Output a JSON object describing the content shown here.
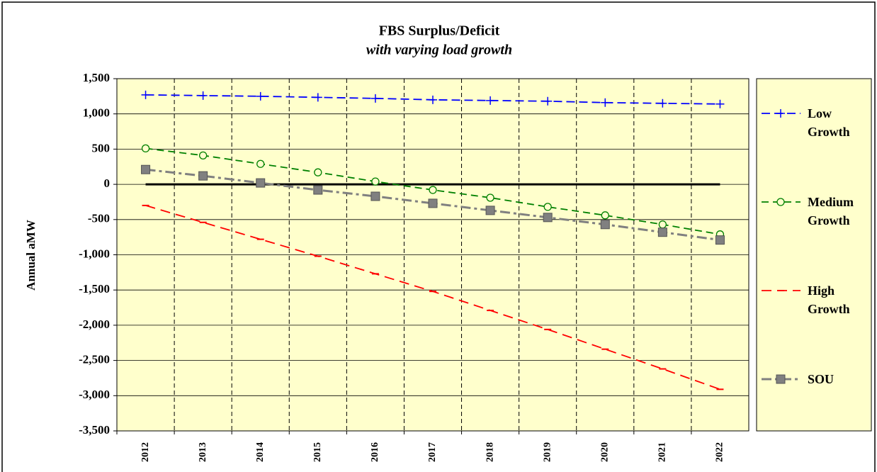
{
  "chart_data": {
    "type": "line",
    "title": "FBS Surplus/Deficit",
    "subtitle": "with varying load growth",
    "y_label": "Annual aMW",
    "categories": [
      "2012",
      "2013",
      "2014",
      "2015",
      "2016",
      "2017",
      "2018",
      "2019",
      "2020",
      "2021",
      "2022"
    ],
    "series": [
      {
        "name": "Low Growth",
        "color": "#0000ff",
        "marker": "plus",
        "values": [
          1270,
          1260,
          1250,
          1235,
          1220,
          1200,
          1190,
          1180,
          1160,
          1150,
          1140
        ]
      },
      {
        "name": "Medium Growth",
        "color": "#008000",
        "marker": "circle",
        "values": [
          510,
          410,
          290,
          170,
          40,
          -80,
          -190,
          -320,
          -440,
          -570,
          -710
        ]
      },
      {
        "name": "High Growth",
        "color": "#ff0000",
        "marker": "dash",
        "values": [
          -300,
          -540,
          -780,
          -1020,
          -1270,
          -1520,
          -1790,
          -2060,
          -2340,
          -2620,
          -2910
        ]
      },
      {
        "name": "SOU",
        "color": "#808080",
        "marker": "square",
        "values": [
          210,
          120,
          20,
          -80,
          -170,
          -270,
          -370,
          -470,
          -570,
          -680,
          -790
        ]
      }
    ],
    "ylim": [
      -3500,
      1500
    ],
    "yticks": [
      {
        "value": -3500,
        "label": "-3,500"
      },
      {
        "value": -3000,
        "label": "-3,000"
      },
      {
        "value": -2500,
        "label": "-2,500"
      },
      {
        "value": -2000,
        "label": "-2,000"
      },
      {
        "value": -1500,
        "label": "-1,500"
      },
      {
        "value": -1000,
        "label": "-1,000"
      },
      {
        "value": -500,
        "label": "-500"
      },
      0,
      500,
      {
        "value": 1000,
        "label": "1,000"
      },
      {
        "value": 1500,
        "label": "1,500"
      }
    ],
    "grid": true,
    "legend": "right"
  }
}
